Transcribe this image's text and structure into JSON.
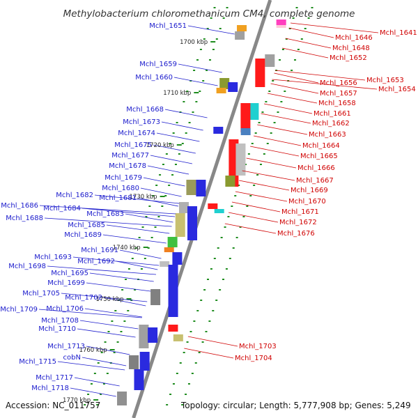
{
  "title": "Methylobacterium chloromethanicum CM4, complete genome",
  "footer": {
    "accession": "Accession: NC_011757",
    "topology": "Topology: circular; Length: 5,777,908 bp; Genes: 5,249"
  },
  "colors": {
    "forward_label": "#1a1acc",
    "reverse_label": "#d00000",
    "axis": "#888888"
  },
  "kbp_labels": [
    "1700 kbp",
    "1710 kbp",
    "1720 kbp",
    "1730 kbp",
    "1740 kbp",
    "1750 kbp",
    "1760 kbp",
    "1770 kbp"
  ],
  "blue_labels": [
    "Mchl_1651",
    "Mchl_1659",
    "Mchl_1660",
    "Mchl_1668",
    "Mchl_1673",
    "Mchl_1674",
    "Mchl_1675",
    "Mchl_1677",
    "Mchl_1678",
    "Mchl_1679",
    "Mchl_1680",
    "Mchl_1681",
    "Mchl_1682",
    "Mchl_1686",
    "Mchl_1684",
    "Mchl_1683",
    "Mchl_1688",
    "Mchl_1685",
    "Mchl_1689",
    "Mchl_1691",
    "Mchl_1693",
    "Mchl_1692",
    "Mchl_1698",
    "Mchl_1695",
    "Mchl_1699",
    "Mchl_1705",
    "Mchl_1702",
    "Mchl_1709",
    "Mchl_1706",
    "Mchl_1708",
    "Mchl_1710",
    "Mchl_1713",
    "cobN",
    "Mchl_1715",
    "Mchl_1717",
    "Mchl_1718"
  ],
  "red_labels": [
    "Mchl_1641",
    "Mchl_1646",
    "Mchl_1648",
    "Mchl_1652",
    "Mchl_1653",
    "Mchl_1656",
    "Mchl_1654",
    "Mchl_1657",
    "Mchl_1658",
    "Mchl_1661",
    "Mchl_1662",
    "Mchl_1663",
    "Mchl_1664",
    "Mchl_1665",
    "Mchl_1666",
    "Mchl_1667",
    "Mchl_1669",
    "Mchl_1670",
    "Mchl_1671",
    "Mchl_1672",
    "Mchl_1676",
    "Mchl_1703",
    "Mchl_1704"
  ]
}
